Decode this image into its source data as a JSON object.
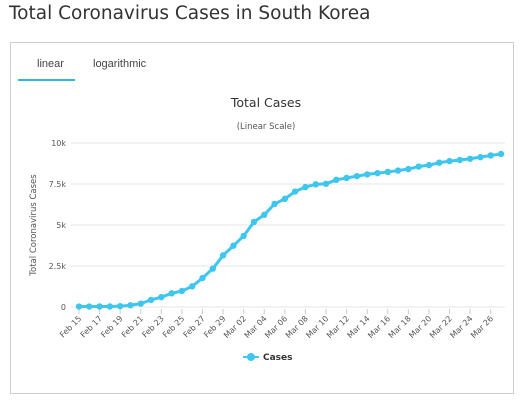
{
  "page": {
    "title": "Total Coronavirus Cases in South Korea"
  },
  "tabs": [
    {
      "label": "linear",
      "active": true
    },
    {
      "label": "logarithmic",
      "active": false
    }
  ],
  "colors": {
    "series": "#3fc6ef",
    "active_tab": "#2fb8e0",
    "grid": "#e6e6e6"
  },
  "chart_data": {
    "type": "line",
    "title": "Total Cases",
    "subtitle": "(Linear Scale)",
    "ylabel": "Total Coronavirus Cases",
    "xlabel": "",
    "ylim": [
      0,
      10000
    ],
    "yticks": [
      {
        "value": 0,
        "label": "0"
      },
      {
        "value": 2500,
        "label": "2.5k"
      },
      {
        "value": 5000,
        "label": "5k"
      },
      {
        "value": 7500,
        "label": "7.5k"
      },
      {
        "value": 10000,
        "label": "10k"
      }
    ],
    "x": [
      "Feb 15",
      "Feb 16",
      "Feb 17",
      "Feb 18",
      "Feb 19",
      "Feb 20",
      "Feb 21",
      "Feb 22",
      "Feb 23",
      "Feb 24",
      "Feb 25",
      "Feb 26",
      "Feb 27",
      "Feb 28",
      "Feb 29",
      "Mar 01",
      "Mar 02",
      "Mar 03",
      "Mar 04",
      "Mar 05",
      "Mar 06",
      "Mar 07",
      "Mar 08",
      "Mar 09",
      "Mar 10",
      "Mar 11",
      "Mar 12",
      "Mar 13",
      "Mar 14",
      "Mar 15",
      "Mar 16",
      "Mar 17",
      "Mar 18",
      "Mar 19",
      "Mar 20",
      "Mar 21",
      "Mar 22",
      "Mar 23",
      "Mar 24",
      "Mar 25",
      "Mar 26",
      "Mar 27"
    ],
    "xtick_labels": [
      "Feb 15",
      "Feb 17",
      "Feb 19",
      "Feb 21",
      "Feb 23",
      "Feb 25",
      "Feb 27",
      "Feb 29",
      "Mar 02",
      "Mar 04",
      "Mar 06",
      "Mar 08",
      "Mar 10",
      "Mar 12",
      "Mar 14",
      "Mar 16",
      "Mar 18",
      "Mar 20",
      "Mar 22",
      "Mar 24",
      "Mar 26"
    ],
    "series": [
      {
        "name": "Cases",
        "values": [
          28,
          29,
          30,
          31,
          51,
          104,
          204,
          433,
          602,
          833,
          977,
          1261,
          1766,
          2337,
          3150,
          3736,
          4335,
          5186,
          5621,
          6284,
          6593,
          7041,
          7314,
          7478,
          7513,
          7755,
          7869,
          7979,
          8086,
          8162,
          8236,
          8320,
          8413,
          8565,
          8652,
          8799,
          8897,
          8961,
          9037,
          9137,
          9241,
          9332
        ]
      }
    ],
    "legend": {
      "position": "bottom-center",
      "label": "Cases"
    },
    "grid": true
  }
}
